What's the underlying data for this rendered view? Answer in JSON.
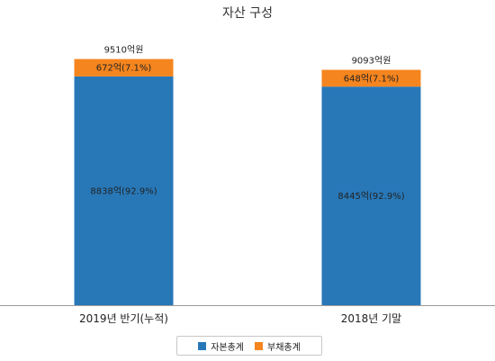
{
  "chart_data": {
    "type": "bar",
    "stacked": true,
    "title": "자산 구성",
    "categories": [
      "2019년 반기(누적)",
      "2018년 기말"
    ],
    "series": [
      {
        "name": "자본총계",
        "color": "#2878b8",
        "values": [
          8838,
          8445
        ],
        "labels": [
          "8838억(92.9%)",
          "8445억(92.9%)"
        ]
      },
      {
        "name": "부채총계",
        "color": "#f5851f",
        "values": [
          672,
          648
        ],
        "labels": [
          "672억(7.1%)",
          "648억(7.1%)"
        ]
      }
    ],
    "totals": [
      9510,
      9093
    ],
    "total_labels": [
      "9510억원",
      "9093억원"
    ],
    "ylim": [
      0,
      10400
    ],
    "grid": false,
    "legend_position": "bottom"
  }
}
